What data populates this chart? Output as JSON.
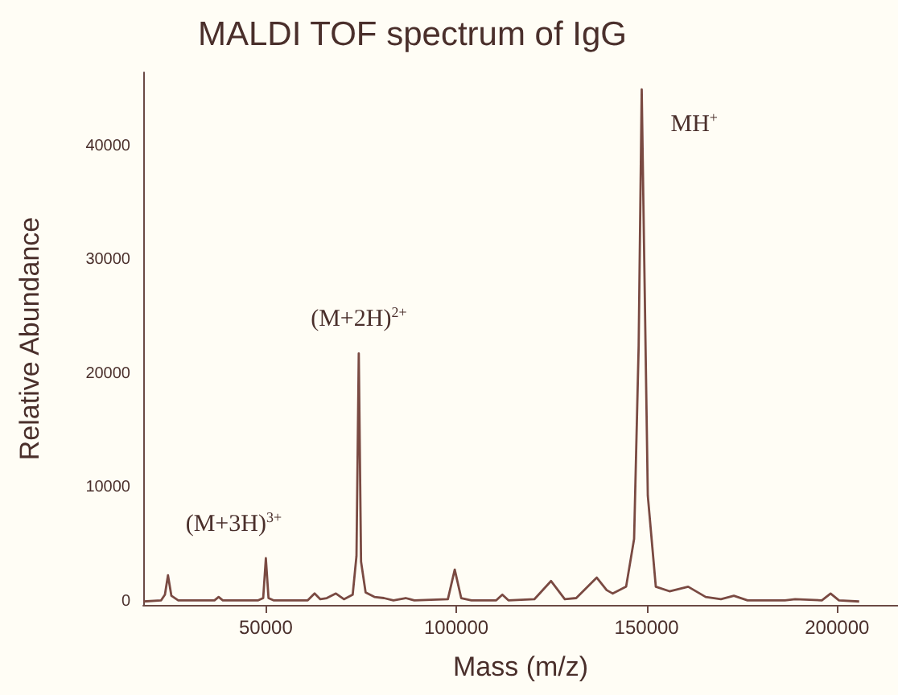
{
  "chart_data": {
    "type": "line",
    "title": "MALDI TOF spectrum of IgG",
    "xlabel": "Mass (m/z)",
    "ylabel": "Relative Abundance",
    "x": [
      17800,
      22500,
      23500,
      24300,
      25200,
      27000,
      36500,
      37600,
      38700,
      48000,
      49300,
      50000,
      50700,
      52000,
      61000,
      62800,
      64300,
      66000,
      68400,
      70500,
      72800,
      73800,
      74400,
      75000,
      76200,
      78500,
      81000,
      83500,
      86700,
      89000,
      97800,
      99600,
      101300,
      104000,
      110500,
      112100,
      113700,
      120500,
      124900,
      128500,
      131500,
      136900,
      139500,
      141100,
      144600,
      146700,
      147900,
      148700,
      149300,
      150300,
      152400,
      156000,
      160900,
      165500,
      169500,
      172900,
      176500,
      186300,
      189000,
      196000,
      198300,
      200500,
      205800
    ],
    "series": [
      {
        "color": "#7a4a42",
        "values": [
          0,
          100,
          600,
          2300,
          500,
          100,
          100,
          400,
          100,
          100,
          300,
          3800,
          300,
          100,
          100,
          700,
          200,
          300,
          700,
          200,
          600,
          4000,
          21800,
          3500,
          800,
          400,
          300,
          100,
          300,
          100,
          200,
          2800,
          300,
          100,
          100,
          600,
          100,
          200,
          1800,
          200,
          300,
          2100,
          1000,
          700,
          1300,
          5500,
          22500,
          45000,
          31500,
          9300,
          1300,
          900,
          1300,
          400,
          200,
          500,
          100,
          100,
          200,
          100,
          700,
          100,
          0
        ]
      }
    ],
    "xlim": [
      17800,
      216000
    ],
    "ylim": [
      -300,
      46500
    ],
    "xticks": [
      50000,
      100000,
      150000,
      200000
    ],
    "yticks": [
      0,
      10000,
      20000,
      30000,
      40000
    ],
    "grid": false,
    "marker": "none",
    "line_style": "solid",
    "annotations": [
      {
        "text": "(M+3H)$^{3+}$",
        "x": 50000,
        "y": 3800
      },
      {
        "text": "(M+2H)$^{2+}$",
        "x": 74400,
        "y": 21800
      },
      {
        "text": "MH$^{+}$",
        "x": 148700,
        "y": 45000
      }
    ]
  }
}
